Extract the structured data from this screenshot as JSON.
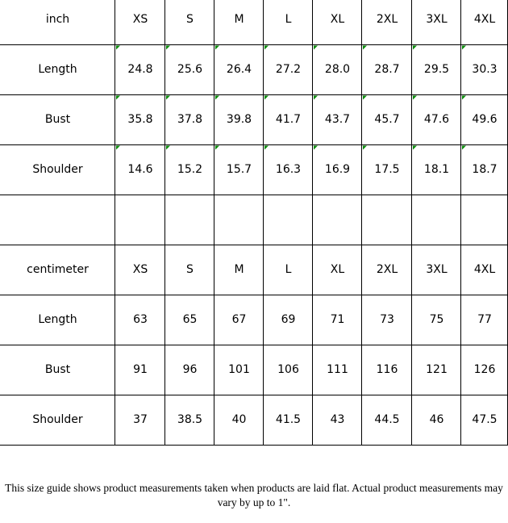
{
  "inch_table": {
    "rows": [
      [
        "inch",
        "XS",
        "S",
        "M",
        "L",
        "XL",
        "2XL",
        "3XL",
        "4XL"
      ],
      [
        "Length",
        "24.8",
        "25.6",
        "26.4",
        "27.2",
        "28.0",
        "28.7",
        "29.5",
        "30.3"
      ],
      [
        "Bust",
        "35.8",
        "37.8",
        "39.8",
        "41.7",
        "43.7",
        "45.7",
        "47.6",
        "49.6"
      ],
      [
        "Shoulder",
        "14.6",
        "15.2",
        "15.7",
        "16.3",
        "16.9",
        "17.5",
        "18.1",
        "18.7"
      ]
    ]
  },
  "cm_table": {
    "rows": [
      [
        "centimeter",
        "XS",
        "S",
        "M",
        "L",
        "XL",
        "2XL",
        "3XL",
        "4XL"
      ],
      [
        "Length",
        "63",
        "65",
        "67",
        "69",
        "71",
        "73",
        "75",
        "77"
      ],
      [
        "Bust",
        "91",
        "96",
        "101",
        "106",
        "111",
        "116",
        "121",
        "126"
      ],
      [
        "Shoulder",
        "37",
        "38.5",
        "40",
        "41.5",
        "43",
        "44.5",
        "46",
        "47.5"
      ]
    ]
  },
  "footer": {
    "note": "This size guide shows product measurements taken when products are laid flat. Actual product measurements may vary by up to 1\"."
  }
}
